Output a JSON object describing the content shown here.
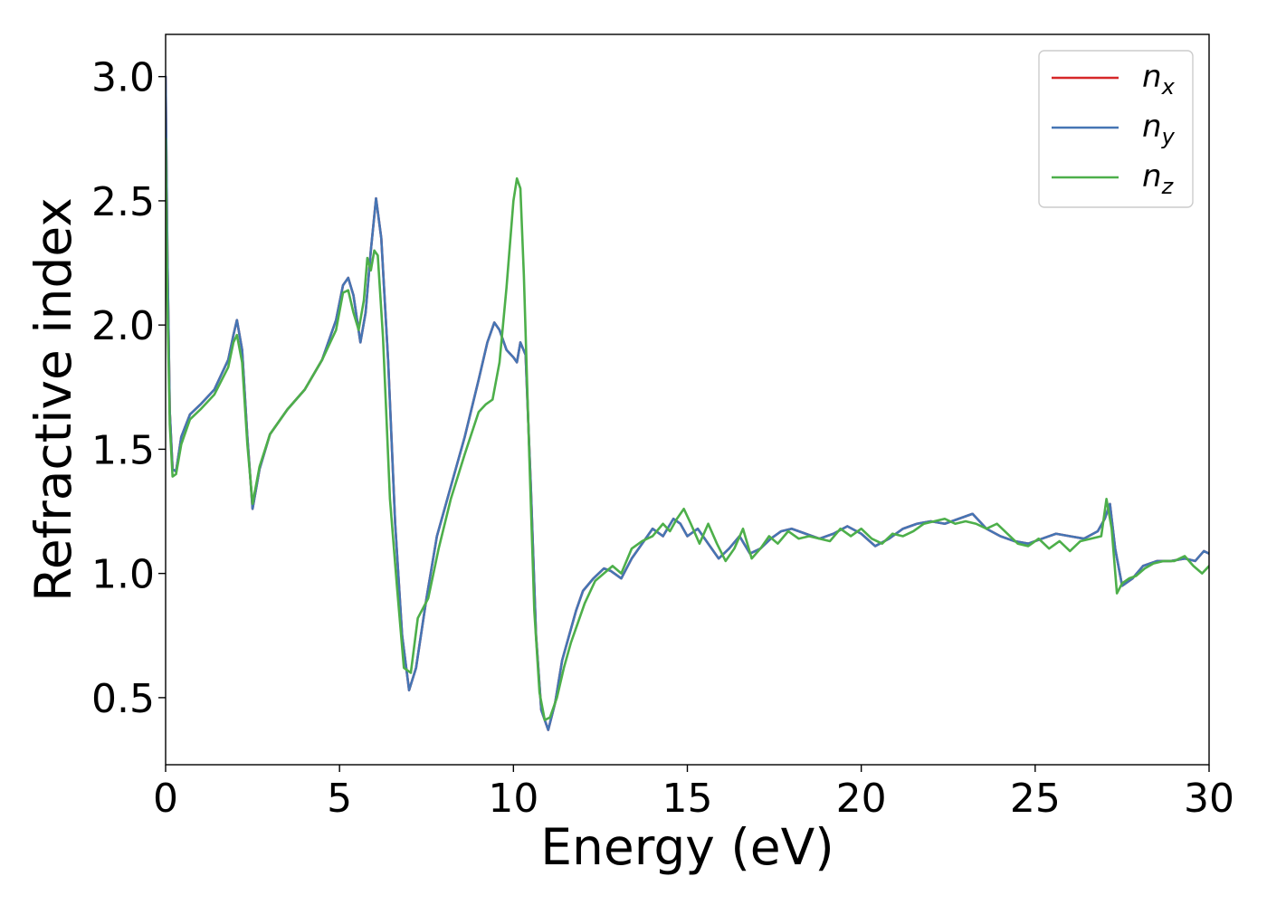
{
  "chart_data": {
    "type": "line",
    "title": "",
    "xlabel": "Energy (eV)",
    "ylabel": "Refractive index",
    "xlim": [
      0,
      30
    ],
    "ylim": [
      0.23,
      3.17
    ],
    "xticks": [
      0,
      5,
      10,
      15,
      20,
      25,
      30
    ],
    "yticks": [
      0.5,
      1.0,
      1.5,
      2.0,
      2.5,
      3.0
    ],
    "xtick_labels": [
      "0",
      "5",
      "10",
      "15",
      "20",
      "25",
      "30"
    ],
    "ytick_labels": [
      "0.5",
      "1.0",
      "1.5",
      "2.0",
      "2.5",
      "3.0"
    ],
    "grid": false,
    "legend_position": "top-right",
    "series": [
      {
        "name": "n",
        "subscript": "x",
        "color": "#d62728",
        "x": [
          0,
          0.05,
          0.12,
          0.2,
          0.3,
          0.45,
          0.7,
          1.0,
          1.4,
          1.8,
          1.95,
          2.05,
          2.2,
          2.35,
          2.5,
          2.7,
          3.0,
          3.5,
          4.0,
          4.5,
          4.9,
          5.1,
          5.25,
          5.4,
          5.6,
          5.75,
          5.9,
          6.05,
          6.2,
          6.4,
          6.6,
          6.8,
          7.0,
          7.2,
          7.5,
          7.8,
          8.2,
          8.6,
          9.0,
          9.25,
          9.45,
          9.6,
          9.8,
          10.0,
          10.1,
          10.2,
          10.35,
          10.5,
          10.65,
          10.8,
          11.0,
          11.2,
          11.4,
          11.6,
          11.8,
          12.0,
          12.3,
          12.6,
          12.8,
          13.1,
          13.4,
          13.7,
          14.0,
          14.3,
          14.6,
          14.8,
          15.0,
          15.3,
          15.6,
          15.9,
          16.2,
          16.5,
          16.8,
          17.1,
          17.4,
          17.7,
          18.0,
          18.4,
          18.8,
          19.2,
          19.6,
          20.0,
          20.4,
          20.8,
          21.2,
          21.6,
          22.0,
          22.4,
          22.8,
          23.2,
          23.6,
          24.0,
          24.4,
          24.8,
          25.2,
          25.6,
          26.0,
          26.4,
          26.8,
          27.0,
          27.15,
          27.3,
          27.5,
          27.8,
          28.1,
          28.5,
          28.9,
          29.3,
          29.6,
          29.85,
          30.0
        ],
        "y": [
          3.0,
          2.3,
          1.65,
          1.42,
          1.41,
          1.55,
          1.64,
          1.68,
          1.74,
          1.86,
          1.96,
          2.02,
          1.9,
          1.55,
          1.26,
          1.42,
          1.56,
          1.66,
          1.74,
          1.86,
          2.02,
          2.16,
          2.19,
          2.12,
          1.93,
          2.05,
          2.3,
          2.51,
          2.35,
          1.85,
          1.2,
          0.75,
          0.53,
          0.62,
          0.9,
          1.15,
          1.35,
          1.55,
          1.78,
          1.93,
          2.01,
          1.98,
          1.9,
          1.87,
          1.85,
          1.93,
          1.88,
          1.35,
          0.75,
          0.45,
          0.37,
          0.48,
          0.65,
          0.75,
          0.85,
          0.93,
          0.98,
          1.02,
          1.01,
          0.98,
          1.06,
          1.12,
          1.18,
          1.15,
          1.22,
          1.2,
          1.15,
          1.18,
          1.12,
          1.06,
          1.1,
          1.15,
          1.08,
          1.1,
          1.14,
          1.17,
          1.18,
          1.16,
          1.14,
          1.16,
          1.19,
          1.16,
          1.11,
          1.14,
          1.18,
          1.2,
          1.21,
          1.2,
          1.22,
          1.24,
          1.18,
          1.15,
          1.13,
          1.12,
          1.14,
          1.16,
          1.15,
          1.14,
          1.17,
          1.22,
          1.28,
          1.1,
          0.95,
          0.98,
          1.03,
          1.05,
          1.05,
          1.06,
          1.05,
          1.09,
          1.08
        ]
      },
      {
        "name": "n",
        "subscript": "y",
        "color": "#4575b4",
        "x": [
          0,
          0.05,
          0.12,
          0.2,
          0.3,
          0.45,
          0.7,
          1.0,
          1.4,
          1.8,
          1.95,
          2.05,
          2.2,
          2.35,
          2.5,
          2.7,
          3.0,
          3.5,
          4.0,
          4.5,
          4.9,
          5.1,
          5.25,
          5.4,
          5.6,
          5.75,
          5.9,
          6.05,
          6.2,
          6.4,
          6.6,
          6.8,
          7.0,
          7.2,
          7.5,
          7.8,
          8.2,
          8.6,
          9.0,
          9.25,
          9.45,
          9.6,
          9.8,
          10.0,
          10.1,
          10.2,
          10.35,
          10.5,
          10.65,
          10.8,
          11.0,
          11.2,
          11.4,
          11.6,
          11.8,
          12.0,
          12.3,
          12.6,
          12.8,
          13.1,
          13.4,
          13.7,
          14.0,
          14.3,
          14.6,
          14.8,
          15.0,
          15.3,
          15.6,
          15.9,
          16.2,
          16.5,
          16.8,
          17.1,
          17.4,
          17.7,
          18.0,
          18.4,
          18.8,
          19.2,
          19.6,
          20.0,
          20.4,
          20.8,
          21.2,
          21.6,
          22.0,
          22.4,
          22.8,
          23.2,
          23.6,
          24.0,
          24.4,
          24.8,
          25.2,
          25.6,
          26.0,
          26.4,
          26.8,
          27.0,
          27.15,
          27.3,
          27.5,
          27.8,
          28.1,
          28.5,
          28.9,
          29.3,
          29.6,
          29.85,
          30.0
        ],
        "y": [
          3.0,
          2.3,
          1.65,
          1.42,
          1.41,
          1.55,
          1.64,
          1.68,
          1.74,
          1.86,
          1.96,
          2.02,
          1.9,
          1.55,
          1.26,
          1.42,
          1.56,
          1.66,
          1.74,
          1.86,
          2.02,
          2.16,
          2.19,
          2.12,
          1.93,
          2.05,
          2.3,
          2.51,
          2.35,
          1.85,
          1.2,
          0.75,
          0.53,
          0.62,
          0.9,
          1.15,
          1.35,
          1.55,
          1.78,
          1.93,
          2.01,
          1.98,
          1.9,
          1.87,
          1.85,
          1.93,
          1.88,
          1.35,
          0.75,
          0.45,
          0.37,
          0.48,
          0.65,
          0.75,
          0.85,
          0.93,
          0.98,
          1.02,
          1.01,
          0.98,
          1.06,
          1.12,
          1.18,
          1.15,
          1.22,
          1.2,
          1.15,
          1.18,
          1.12,
          1.06,
          1.1,
          1.15,
          1.08,
          1.1,
          1.14,
          1.17,
          1.18,
          1.16,
          1.14,
          1.16,
          1.19,
          1.16,
          1.11,
          1.14,
          1.18,
          1.2,
          1.21,
          1.2,
          1.22,
          1.24,
          1.18,
          1.15,
          1.13,
          1.12,
          1.14,
          1.16,
          1.15,
          1.14,
          1.17,
          1.22,
          1.28,
          1.1,
          0.95,
          0.98,
          1.03,
          1.05,
          1.05,
          1.06,
          1.05,
          1.09,
          1.08
        ]
      },
      {
        "name": "n",
        "subscript": "z",
        "color": "#4daf4a",
        "x": [
          0,
          0.05,
          0.12,
          0.2,
          0.3,
          0.45,
          0.7,
          1.0,
          1.4,
          1.8,
          1.95,
          2.05,
          2.2,
          2.35,
          2.5,
          2.7,
          3.0,
          3.5,
          4.0,
          4.5,
          4.9,
          5.1,
          5.25,
          5.4,
          5.55,
          5.7,
          5.8,
          5.9,
          6.0,
          6.1,
          6.25,
          6.45,
          6.65,
          6.85,
          7.05,
          7.25,
          7.55,
          7.85,
          8.2,
          8.6,
          9.0,
          9.2,
          9.4,
          9.6,
          9.8,
          10.0,
          10.1,
          10.2,
          10.3,
          10.45,
          10.6,
          10.75,
          10.9,
          11.05,
          11.25,
          11.45,
          11.65,
          11.85,
          12.05,
          12.35,
          12.6,
          12.85,
          13.1,
          13.4,
          13.7,
          14.0,
          14.3,
          14.5,
          14.7,
          14.9,
          15.1,
          15.35,
          15.6,
          15.85,
          16.1,
          16.35,
          16.6,
          16.85,
          17.1,
          17.35,
          17.6,
          17.9,
          18.2,
          18.5,
          18.8,
          19.1,
          19.4,
          19.7,
          20.0,
          20.3,
          20.6,
          20.9,
          21.2,
          21.5,
          21.8,
          22.1,
          22.4,
          22.7,
          23.0,
          23.3,
          23.6,
          23.9,
          24.2,
          24.5,
          24.8,
          25.1,
          25.4,
          25.7,
          26.0,
          26.3,
          26.6,
          26.9,
          27.05,
          27.2,
          27.35,
          27.5,
          27.7,
          27.9,
          28.15,
          28.4,
          28.7,
          29.0,
          29.3,
          29.55,
          29.8,
          30.0
        ],
        "y": [
          2.75,
          2.1,
          1.6,
          1.39,
          1.4,
          1.52,
          1.62,
          1.66,
          1.72,
          1.83,
          1.93,
          1.96,
          1.85,
          1.52,
          1.28,
          1.43,
          1.56,
          1.66,
          1.74,
          1.86,
          1.98,
          2.13,
          2.14,
          2.05,
          1.98,
          2.1,
          2.27,
          2.22,
          2.3,
          2.28,
          1.95,
          1.3,
          0.95,
          0.62,
          0.6,
          0.82,
          0.9,
          1.1,
          1.3,
          1.48,
          1.65,
          1.68,
          1.7,
          1.85,
          2.15,
          2.5,
          2.59,
          2.55,
          2.2,
          1.5,
          0.85,
          0.52,
          0.41,
          0.42,
          0.5,
          0.62,
          0.72,
          0.8,
          0.88,
          0.97,
          1.0,
          1.03,
          1.0,
          1.1,
          1.13,
          1.15,
          1.2,
          1.17,
          1.22,
          1.26,
          1.2,
          1.12,
          1.2,
          1.12,
          1.05,
          1.1,
          1.18,
          1.06,
          1.1,
          1.15,
          1.12,
          1.17,
          1.14,
          1.15,
          1.14,
          1.13,
          1.18,
          1.15,
          1.18,
          1.14,
          1.12,
          1.16,
          1.15,
          1.17,
          1.2,
          1.21,
          1.22,
          1.2,
          1.21,
          1.2,
          1.18,
          1.2,
          1.16,
          1.12,
          1.11,
          1.14,
          1.1,
          1.13,
          1.09,
          1.13,
          1.14,
          1.15,
          1.3,
          1.18,
          0.92,
          0.96,
          0.98,
          0.99,
          1.02,
          1.04,
          1.05,
          1.05,
          1.07,
          1.03,
          1.0,
          1.03
        ]
      }
    ]
  }
}
